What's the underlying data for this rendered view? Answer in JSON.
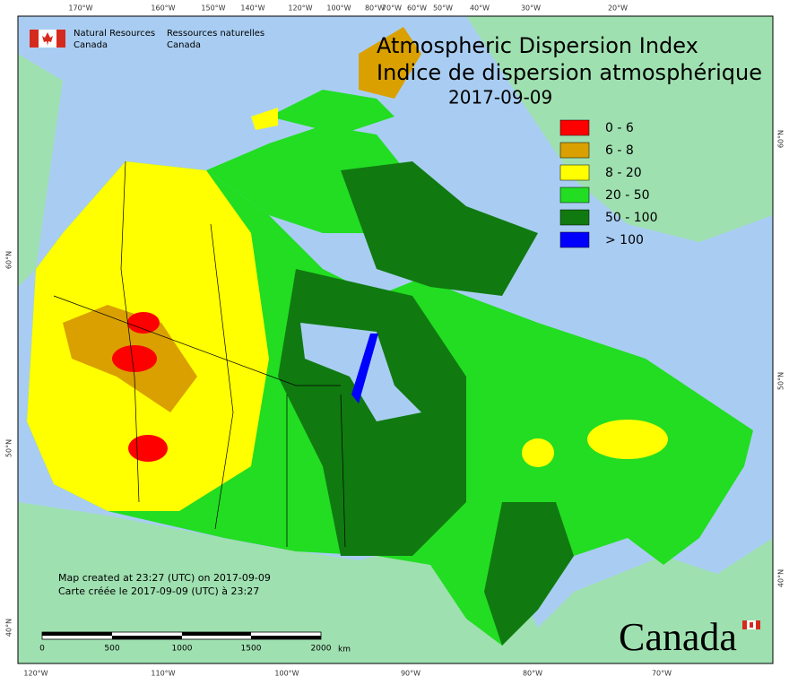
{
  "header": {
    "title_en": "Atmospheric Dispersion Index",
    "title_fr": "Indice de dispersion atmosphérique",
    "date": "2017-09-09"
  },
  "agency": {
    "en_line1": "Natural Resources",
    "en_line2": "Canada",
    "fr_line1": "Ressources naturelles",
    "fr_line2": "Canada"
  },
  "legend": [
    {
      "label": "0 - 6",
      "color": "#ff0000"
    },
    {
      "label": "6 - 8",
      "color": "#d9a000"
    },
    {
      "label": "8 - 20",
      "color": "#ffff00"
    },
    {
      "label": "20 - 50",
      "color": "#22dd22"
    },
    {
      "label": "50 - 100",
      "color": "#107a10"
    },
    {
      "label": "> 100",
      "color": "#0000ff"
    }
  ],
  "graticule": {
    "top": [
      "170°W",
      "160°W",
      "150°W",
      "140°W",
      "120°W",
      "100°W",
      "80°W",
      "70°W",
      "60°W",
      "50°W",
      "40°W",
      "30°W",
      "20°W"
    ],
    "bottom": [
      "120°W",
      "110°W",
      "100°W",
      "90°W",
      "80°W",
      "70°W"
    ],
    "left": [
      "60°N",
      "50°N",
      "40°N"
    ],
    "right": [
      "60°N",
      "50°N",
      "40°N"
    ]
  },
  "notes": [
    "Map created at 23:27 (UTC) on 2017-09-09",
    "Carte créée le 2017-09-09 (UTC) à 23:27"
  ],
  "scale_bar": {
    "labels": [
      "0",
      "500",
      "1000",
      "1500",
      "2000"
    ],
    "unit": "km"
  },
  "wordmark": "Canada"
}
